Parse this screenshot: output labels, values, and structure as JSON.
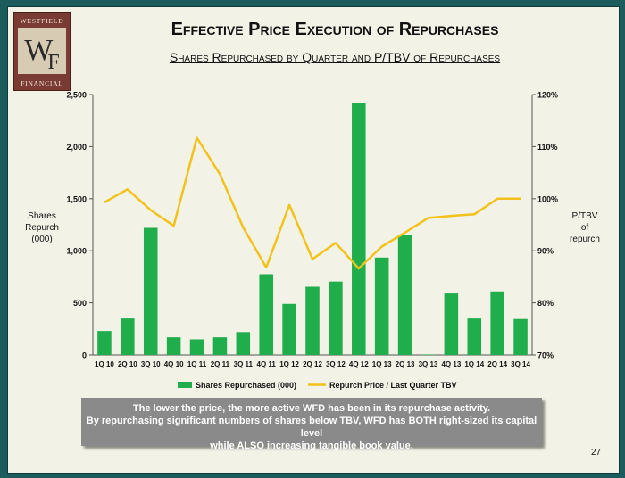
{
  "logo": {
    "top": "WESTFIELD",
    "monogram_w": "W",
    "monogram_f": "F",
    "bottom": "FINANCIAL"
  },
  "title": "Effective Price Execution of Repurchases",
  "subtitle": "Shares Repurchased by Quarter and P/TBV of Repurchases",
  "left_axis_label": [
    "Shares",
    "Repurch",
    "(000)"
  ],
  "right_axis_label": [
    "P/TBV",
    "of",
    "repurch"
  ],
  "chart_data": {
    "type": "bar",
    "categories": [
      "1Q 10",
      "2Q 10",
      "3Q 10",
      "4Q 10",
      "1Q 11",
      "2Q 11",
      "3Q 11",
      "4Q 11",
      "1Q 12",
      "2Q 12",
      "3Q 12",
      "4Q 12",
      "1Q 13",
      "2Q 13",
      "3Q 13",
      "4Q 13",
      "1Q 14",
      "2Q 14",
      "3Q 14"
    ],
    "series": [
      {
        "name": "Shares Repurchased (000)",
        "type": "bar",
        "axis": "left",
        "color": "#1fae4b",
        "values": [
          230,
          350,
          1220,
          170,
          150,
          170,
          220,
          775,
          490,
          655,
          705,
          2420,
          935,
          1150,
          5,
          590,
          350,
          610,
          345
        ]
      },
      {
        "name": "Repurch Price / Last Quarter TBV",
        "type": "line",
        "axis": "right",
        "color": "#f2c21b",
        "values": [
          99.3,
          101.8,
          97.8,
          94.8,
          111.7,
          104.7,
          94.5,
          86.8,
          98.8,
          88.4,
          91.5,
          86.6,
          90.8,
          93.5,
          96.3,
          96.7,
          97.0,
          100.0,
          100.0
        ]
      }
    ],
    "y_left": {
      "min": 0,
      "max": 2500,
      "ticks": [
        "0",
        "500",
        "1,000",
        "1,500",
        "2,000",
        "2,500"
      ]
    },
    "y_right": {
      "min": 70,
      "max": 120,
      "ticks": [
        "70%",
        "80%",
        "90%",
        "100%",
        "110%",
        "120%"
      ]
    },
    "legend": [
      "Shares Repurchased (000)",
      "Repurch Price / Last Quarter TBV"
    ],
    "legend_position": "bottom"
  },
  "note": {
    "line1": "The lower the price, the more active WFD has been in its repurchase activity.",
    "line2": "By repurchasing significant numbers of shares below TBV,  WFD has BOTH right-sized its capital level",
    "line3": "while ALSO increasing tangible book value."
  },
  "page_number": "27"
}
